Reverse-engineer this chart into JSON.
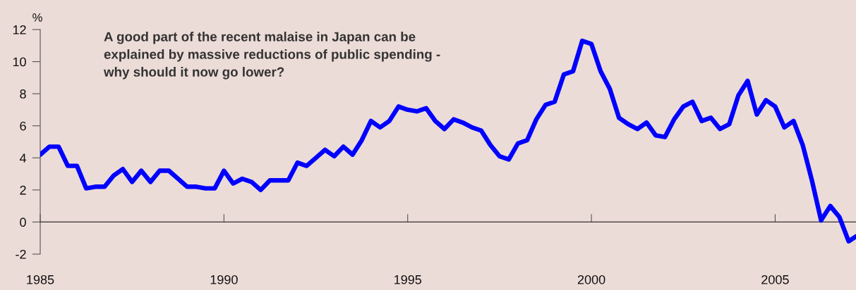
{
  "chart_data": {
    "type": "line",
    "ylabel": "%",
    "annotations": [
      "A good part of the recent malaise in Japan can be\nexplained by massive reductions of public spending -\nwhy should it now go lower?"
    ],
    "x": [
      1985,
      1985.25,
      1985.5,
      1985.75,
      1986,
      1986.25,
      1986.5,
      1986.75,
      1987,
      1987.25,
      1987.5,
      1987.75,
      1988,
      1988.25,
      1988.5,
      1988.75,
      1989,
      1989.25,
      1989.5,
      1989.75,
      1990,
      1990.25,
      1990.5,
      1990.75,
      1991,
      1991.25,
      1991.5,
      1991.75,
      1992,
      1992.25,
      1992.5,
      1992.75,
      1993,
      1993.25,
      1993.5,
      1993.75,
      1994,
      1994.25,
      1994.5,
      1994.75,
      1995,
      1995.25,
      1995.5,
      1995.75,
      1996,
      1996.25,
      1996.5,
      1996.75,
      1997,
      1997.25,
      1997.5,
      1997.75,
      1998,
      1998.25,
      1998.5,
      1998.75,
      1999,
      1999.25,
      1999.5,
      1999.75,
      2000,
      2000.25,
      2000.5,
      2000.75,
      2001,
      2001.25,
      2001.5,
      2001.75,
      2002,
      2002.25,
      2002.5,
      2002.75,
      2003,
      2003.25,
      2003.5,
      2003.75,
      2004,
      2004.25,
      2004.5,
      2004.75,
      2005,
      2005.25,
      2005.5,
      2005.75,
      2006,
      2006.25,
      2006.5,
      2006.75,
      2007,
      2007.2
    ],
    "series": [
      {
        "color": "#0000ff",
        "values": [
          4.2,
          4.7,
          4.7,
          3.5,
          3.5,
          2.1,
          2.2,
          2.2,
          2.9,
          3.3,
          2.5,
          3.2,
          2.5,
          3.2,
          3.2,
          2.7,
          2.2,
          2.2,
          2.1,
          2.1,
          3.2,
          2.4,
          2.7,
          2.5,
          2.0,
          2.6,
          2.6,
          2.6,
          3.7,
          3.5,
          4.0,
          4.5,
          4.1,
          4.7,
          4.2,
          5.1,
          6.3,
          5.9,
          6.3,
          7.2,
          7.0,
          6.9,
          7.1,
          6.3,
          5.8,
          6.4,
          6.2,
          5.9,
          5.7,
          4.8,
          4.1,
          3.9,
          4.9,
          5.1,
          6.4,
          7.3,
          7.5,
          9.2,
          9.4,
          11.3,
          11.1,
          9.4,
          8.3,
          6.5,
          6.1,
          5.8,
          6.2,
          5.4,
          5.3,
          6.4,
          7.2,
          7.5,
          6.3,
          6.5,
          5.8,
          6.1,
          7.9,
          8.8,
          6.7,
          7.6,
          7.2,
          5.9,
          6.3,
          4.8,
          2.6,
          0.1,
          1.0,
          0.3,
          -1.2,
          -0.9
        ]
      }
    ],
    "xlim": [
      1985,
      2007.2
    ],
    "xticks": [
      1985,
      1990,
      1995,
      2000,
      2005
    ],
    "ylim": [
      -2,
      12
    ],
    "yticks": [
      -2,
      0,
      2,
      4,
      6,
      8,
      10,
      12
    ],
    "marker": "none",
    "line_style": "solid"
  }
}
